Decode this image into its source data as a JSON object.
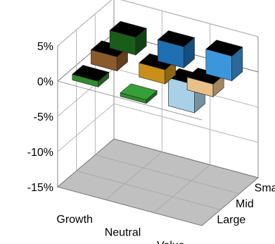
{
  "chart_data": {
    "type": "bar",
    "subtype": "3d-column",
    "x_categories": [
      "Growth",
      "Neutral",
      "Value"
    ],
    "z_categories": [
      "Small",
      "Mid",
      "Large"
    ],
    "y_ticks": [
      "5%",
      "0%",
      "-5%",
      "-10%",
      "-15%"
    ],
    "ylim": [
      -15,
      5
    ],
    "grid": true,
    "bars": [
      {
        "x": "Growth",
        "z": "Small",
        "value": 2.5,
        "color": "#1a5c1a"
      },
      {
        "x": "Growth",
        "z": "Mid",
        "value": 2.0,
        "color": "#8b5a2b"
      },
      {
        "x": "Growth",
        "z": "Large",
        "value": 0.8,
        "color": "#2e8b2e"
      },
      {
        "x": "Neutral",
        "z": "Small",
        "value": 3.0,
        "color": "#1f6fb2"
      },
      {
        "x": "Neutral",
        "z": "Mid",
        "value": 2.0,
        "color": "#c8901a"
      },
      {
        "x": "Neutral",
        "z": "Large",
        "value": -0.5,
        "color": "#2e8b2e"
      },
      {
        "x": "Value",
        "z": "Small",
        "value": 3.5,
        "color": "#3c96dc"
      },
      {
        "x": "Value",
        "z": "Mid",
        "value": 1.8,
        "color": "#e8c08a"
      },
      {
        "x": "Value",
        "z": "Large",
        "value": 4.0,
        "color": "#a8d0e6"
      }
    ],
    "floor_color": "#c0c0c0",
    "top_face_color": "#000000"
  }
}
